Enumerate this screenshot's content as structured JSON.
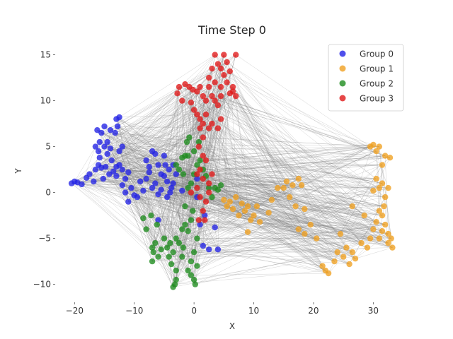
{
  "chart_data": {
    "type": "scatter",
    "title": "Time Step 0",
    "xlabel": "X",
    "ylabel": "Y",
    "xlim": [
      -23,
      36
    ],
    "ylim": [
      -11.8,
      16.2
    ],
    "xticks": [
      -20,
      -10,
      0,
      10,
      20,
      30
    ],
    "yticks": [
      -10,
      -5,
      0,
      5,
      10,
      15
    ],
    "xtick_labels": [
      "−20",
      "−10",
      "0",
      "10",
      "20",
      "30"
    ],
    "ytick_labels": [
      "−10",
      "−5",
      "0",
      "5",
      "10",
      "15"
    ],
    "grid": false,
    "legend_position": "top-right",
    "edges": "gray connection lines between points",
    "series": [
      {
        "name": "Group 0",
        "color": "#2323e6",
        "points": [
          [
            -20.5,
            1.0
          ],
          [
            -20.0,
            1.2
          ],
          [
            -19.5,
            1.1
          ],
          [
            -18.8,
            0.9
          ],
          [
            -18.0,
            1.6
          ],
          [
            -17.5,
            2.0
          ],
          [
            -16.8,
            1.2
          ],
          [
            -16.5,
            2.5
          ],
          [
            -16.0,
            3.0
          ],
          [
            -15.5,
            2.7
          ],
          [
            -15.8,
            3.8
          ],
          [
            -15.2,
            1.5
          ],
          [
            -14.8,
            2.8
          ],
          [
            -14.5,
            4.2
          ],
          [
            -14.2,
            2.0
          ],
          [
            -13.8,
            3.5
          ],
          [
            -13.5,
            2.3
          ],
          [
            -13.0,
            2.8
          ],
          [
            -12.5,
            3.0
          ],
          [
            -12.0,
            2.5
          ],
          [
            -11.5,
            1.5
          ],
          [
            -11.0,
            2.2
          ],
          [
            -11.5,
            0.0
          ],
          [
            -11.0,
            -1.0
          ],
          [
            -12.0,
            0.8
          ],
          [
            -13.0,
            1.8
          ],
          [
            -10.5,
            0.5
          ],
          [
            -10.0,
            -0.3
          ],
          [
            -9.5,
            -0.5
          ],
          [
            -9.0,
            1.2
          ],
          [
            -8.5,
            0.2
          ],
          [
            -8.0,
            1.5
          ],
          [
            -7.5,
            2.2
          ],
          [
            -7.0,
            0.5
          ],
          [
            -6.5,
            1.0
          ],
          [
            -6.0,
            -0.2
          ],
          [
            -5.5,
            0.3
          ],
          [
            -5.0,
            1.8
          ],
          [
            -4.5,
            -0.5
          ],
          [
            -4.0,
            0.0
          ],
          [
            -3.8,
            0.5
          ],
          [
            -4.2,
            2.5
          ],
          [
            -4.8,
            3.0
          ],
          [
            -5.5,
            2.0
          ],
          [
            -6.0,
            3.0
          ],
          [
            -6.5,
            4.2
          ],
          [
            -7.0,
            4.5
          ],
          [
            -7.5,
            2.8
          ],
          [
            -8.0,
            3.5
          ],
          [
            -5.0,
            4.0
          ],
          [
            -3.5,
            3.0
          ],
          [
            -3.0,
            2.0
          ],
          [
            -3.5,
            1.0
          ],
          [
            -4.5,
            1.2
          ],
          [
            -12.5,
            8.2
          ],
          [
            -13.0,
            8.0
          ],
          [
            -12.8,
            7.2
          ],
          [
            -13.2,
            6.5
          ],
          [
            -14.0,
            6.8
          ],
          [
            -15.0,
            7.2
          ],
          [
            -15.5,
            6.5
          ],
          [
            -16.2,
            6.8
          ],
          [
            -15.8,
            5.5
          ],
          [
            -16.5,
            5.0
          ],
          [
            -15.0,
            5.0
          ],
          [
            -14.5,
            5.5
          ],
          [
            -14.0,
            4.8
          ],
          [
            -12.5,
            4.5
          ],
          [
            -12.0,
            5.0
          ],
          [
            -16.0,
            4.5
          ],
          [
            -6.0,
            -3.0
          ],
          [
            1.0,
            -3.5
          ],
          [
            1.8,
            -2.5
          ],
          [
            3.5,
            -3.8
          ],
          [
            1.5,
            -5.8
          ],
          [
            2.5,
            -6.2
          ],
          [
            4.0,
            -6.2
          ],
          [
            0.5,
            -0.5
          ],
          [
            -2.0,
            0.2
          ],
          [
            0.5,
            1.5
          ]
        ]
      },
      {
        "name": "Group 1",
        "color": "#f0a020",
        "points": [
          [
            5.0,
            -0.8
          ],
          [
            5.5,
            -1.5
          ],
          [
            6.0,
            -1.0
          ],
          [
            6.5,
            -1.8
          ],
          [
            7.0,
            -0.5
          ],
          [
            7.5,
            -2.5
          ],
          [
            8.0,
            -1.2
          ],
          [
            8.5,
            -2.0
          ],
          [
            9.0,
            -1.5
          ],
          [
            9.5,
            -3.0
          ],
          [
            10.0,
            -2.5
          ],
          [
            10.5,
            -1.5
          ],
          [
            11.0,
            -3.2
          ],
          [
            9.0,
            -4.3
          ],
          [
            12.5,
            -2.2
          ],
          [
            13.0,
            -0.8
          ],
          [
            14.0,
            0.5
          ],
          [
            15.0,
            0.5
          ],
          [
            16.0,
            -0.5
          ],
          [
            15.5,
            1.2
          ],
          [
            16.5,
            0.8
          ],
          [
            17.5,
            1.5
          ],
          [
            18.0,
            0.8
          ],
          [
            17.0,
            -1.5
          ],
          [
            18.5,
            -1.8
          ],
          [
            17.5,
            -4.0
          ],
          [
            18.5,
            -4.5
          ],
          [
            19.5,
            -3.5
          ],
          [
            20.5,
            -5.0
          ],
          [
            21.5,
            -8.0
          ],
          [
            22.0,
            -8.5
          ],
          [
            22.5,
            -8.8
          ],
          [
            23.5,
            -7.5
          ],
          [
            24.0,
            -6.5
          ],
          [
            25.0,
            -7.0
          ],
          [
            25.5,
            -6.0
          ],
          [
            26.0,
            -7.8
          ],
          [
            26.5,
            -6.5
          ],
          [
            27.0,
            -7.2
          ],
          [
            28.0,
            -5.5
          ],
          [
            29.0,
            -6.0
          ],
          [
            29.5,
            -5.0
          ],
          [
            30.0,
            -4.0
          ],
          [
            30.5,
            -3.2
          ],
          [
            31.0,
            -5.0
          ],
          [
            31.5,
            -4.2
          ],
          [
            32.0,
            -3.5
          ],
          [
            32.5,
            -4.5
          ],
          [
            33.0,
            -5.0
          ],
          [
            33.2,
            -6.0
          ],
          [
            32.5,
            -5.5
          ],
          [
            31.5,
            -2.5
          ],
          [
            31.0,
            -2.0
          ],
          [
            31.8,
            -1.5
          ],
          [
            32.0,
            -0.5
          ],
          [
            32.5,
            0.5
          ],
          [
            31.5,
            1.0
          ],
          [
            30.5,
            1.5
          ],
          [
            30.0,
            0.2
          ],
          [
            31.0,
            0.5
          ],
          [
            31.5,
            3.0
          ],
          [
            32.0,
            4.0
          ],
          [
            32.8,
            3.8
          ],
          [
            31.0,
            5.0
          ],
          [
            30.0,
            5.2
          ],
          [
            30.5,
            4.5
          ],
          [
            29.5,
            5.0
          ],
          [
            24.5,
            -4.5
          ],
          [
            26.5,
            -1.5
          ],
          [
            28.5,
            -2.5
          ]
        ]
      },
      {
        "name": "Group 2",
        "color": "#1e8c1e",
        "points": [
          [
            -8.5,
            -2.8
          ],
          [
            -8.0,
            -4.0
          ],
          [
            -7.2,
            -2.5
          ],
          [
            -7.0,
            -6.0
          ],
          [
            -6.8,
            -6.5
          ],
          [
            -6.5,
            -5.5
          ],
          [
            -6.0,
            -7.0
          ],
          [
            -5.5,
            -6.2
          ],
          [
            -5.0,
            -5.0
          ],
          [
            -4.5,
            -6.0
          ],
          [
            -4.0,
            -5.5
          ],
          [
            -4.2,
            -7.0
          ],
          [
            -3.8,
            -7.8
          ],
          [
            -3.5,
            -6.5
          ],
          [
            -3.0,
            -5.0
          ],
          [
            -2.5,
            -5.5
          ],
          [
            -2.0,
            -4.0
          ],
          [
            -1.5,
            -3.5
          ],
          [
            -1.0,
            -4.2
          ],
          [
            -0.5,
            -3.0
          ],
          [
            -0.2,
            -2.0
          ],
          [
            0.5,
            -5.0
          ],
          [
            0.0,
            -6.5
          ],
          [
            -0.5,
            -7.5
          ],
          [
            -1.0,
            -8.5
          ],
          [
            -0.5,
            -9.0
          ],
          [
            0.0,
            -9.5
          ],
          [
            0.5,
            -8.0
          ],
          [
            0.2,
            -10.0
          ],
          [
            -3.2,
            -10.0
          ],
          [
            -3.5,
            -10.3
          ],
          [
            -3.0,
            -9.5
          ],
          [
            -7.0,
            -7.5
          ],
          [
            -6.2,
            -3.5
          ],
          [
            -2.0,
            -7.0
          ],
          [
            -1.8,
            -6.0
          ],
          [
            -3.0,
            -8.5
          ],
          [
            -1.5,
            -1.5
          ],
          [
            -1.0,
            0.5
          ],
          [
            -0.5,
            1.0
          ],
          [
            0.0,
            2.0
          ],
          [
            0.5,
            3.0
          ],
          [
            1.0,
            3.5
          ],
          [
            -1.0,
            4.0
          ],
          [
            0.0,
            4.5
          ],
          [
            -1.2,
            5.5
          ],
          [
            -1.5,
            4.0
          ],
          [
            -2.0,
            3.8
          ],
          [
            -2.5,
            2.5
          ],
          [
            -3.0,
            3.0
          ],
          [
            -1.8,
            2.0
          ],
          [
            1.5,
            2.5
          ],
          [
            2.0,
            1.8
          ],
          [
            2.5,
            0.5
          ],
          [
            3.0,
            -0.5
          ],
          [
            3.5,
            0.5
          ],
          [
            4.0,
            0.3
          ],
          [
            4.5,
            0.8
          ],
          [
            -0.8,
            6.0
          ],
          [
            0.8,
            5.5
          ]
        ]
      },
      {
        "name": "Group 3",
        "color": "#e01818",
        "points": [
          [
            3.5,
            15.0
          ],
          [
            5.0,
            15.0
          ],
          [
            7.0,
            15.0
          ],
          [
            4.0,
            14.0
          ],
          [
            5.5,
            14.2
          ],
          [
            4.5,
            13.5
          ],
          [
            5.0,
            12.8
          ],
          [
            6.0,
            13.2
          ],
          [
            3.0,
            13.5
          ],
          [
            2.5,
            12.5
          ],
          [
            3.5,
            12.0
          ],
          [
            4.5,
            11.5
          ],
          [
            5.5,
            12.0
          ],
          [
            6.5,
            11.5
          ],
          [
            6.0,
            10.8
          ],
          [
            7.0,
            10.5
          ],
          [
            6.5,
            11.0
          ],
          [
            -2.5,
            11.5
          ],
          [
            -1.5,
            11.8
          ],
          [
            -0.8,
            11.5
          ],
          [
            -0.2,
            11.2
          ],
          [
            0.5,
            11.0
          ],
          [
            1.0,
            11.5
          ],
          [
            1.5,
            10.5
          ],
          [
            2.0,
            10.0
          ],
          [
            2.5,
            11.5
          ],
          [
            3.0,
            10.5
          ],
          [
            3.5,
            10.0
          ],
          [
            4.0,
            9.5
          ],
          [
            4.5,
            10.5
          ],
          [
            -2.8,
            10.8
          ],
          [
            -2.0,
            10.0
          ],
          [
            -0.5,
            9.8
          ],
          [
            0.0,
            9.0
          ],
          [
            0.5,
            8.5
          ],
          [
            1.0,
            8.0
          ],
          [
            1.5,
            7.5
          ],
          [
            2.0,
            8.5
          ],
          [
            2.5,
            7.0
          ],
          [
            3.0,
            7.5
          ],
          [
            4.0,
            7.0
          ],
          [
            4.5,
            8.0
          ],
          [
            1.0,
            7.0
          ],
          [
            1.5,
            6.0
          ],
          [
            0.8,
            5.0
          ],
          [
            1.5,
            4.0
          ],
          [
            2.0,
            3.5
          ],
          [
            1.0,
            2.5
          ],
          [
            0.5,
            2.0
          ],
          [
            1.5,
            1.5
          ],
          [
            2.5,
            1.0
          ],
          [
            3.0,
            2.0
          ],
          [
            0.5,
            0.5
          ],
          [
            1.0,
            -0.5
          ],
          [
            2.0,
            -1.0
          ],
          [
            1.5,
            -2.0
          ],
          [
            0.8,
            -3.0
          ],
          [
            -0.5,
            0.0
          ],
          [
            1.8,
            -3.0
          ],
          [
            2.5,
            0.0
          ]
        ]
      }
    ]
  }
}
